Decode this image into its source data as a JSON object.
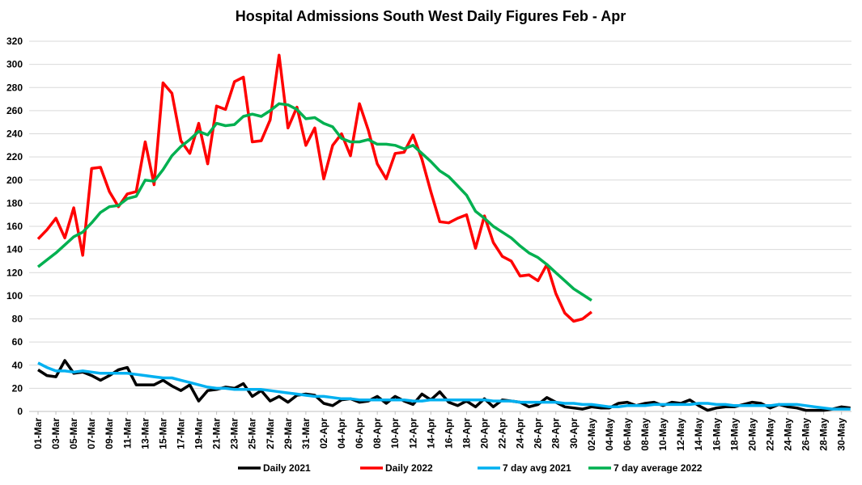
{
  "chart_data": {
    "type": "line",
    "title": "Hospital Admissions South West Daily Figures Feb - Apr",
    "xlabel": "",
    "ylabel": "",
    "ylim": [
      0,
      320
    ],
    "y_ticks": [
      0,
      20,
      40,
      60,
      80,
      100,
      120,
      140,
      160,
      180,
      200,
      220,
      240,
      260,
      280,
      300,
      320
    ],
    "grid": true,
    "legend_position": "bottom",
    "x_tick_labels": [
      "01-Mar",
      "03-Mar",
      "05-Mar",
      "07-Mar",
      "09-Mar",
      "11-Mar",
      "13-Mar",
      "15-Mar",
      "17-Mar",
      "19-Mar",
      "21-Mar",
      "23-Mar",
      "25-Mar",
      "27-Mar",
      "29-Mar",
      "31-Mar",
      "02-Apr",
      "04-Apr",
      "06-Apr",
      "08-Apr",
      "10-Apr",
      "12-Apr",
      "14-Apr",
      "16-Apr",
      "18-Apr",
      "20-Apr",
      "22-Apr",
      "24-Apr",
      "26-Apr",
      "28-Apr",
      "30-Apr",
      "02-May",
      "04-May",
      "06-May",
      "08-May",
      "10-May",
      "12-May",
      "14-May",
      "16-May",
      "18-May",
      "20-May",
      "22-May",
      "24-May",
      "26-May",
      "28-May",
      "30-May"
    ],
    "x_note_daily_from": "01-Mar",
    "series": [
      {
        "name": "Daily 2021",
        "color": "#000000",
        "values": [
          36,
          31,
          30,
          44,
          33,
          34,
          31,
          27,
          31,
          36,
          38,
          23,
          23,
          23,
          27,
          22,
          18,
          23,
          9,
          18,
          19,
          21,
          20,
          24,
          13,
          18,
          9,
          13,
          8,
          14,
          15,
          14,
          7,
          5,
          10,
          11,
          8,
          9,
          13,
          7,
          13,
          9,
          6,
          15,
          10,
          17,
          8,
          5,
          9,
          4,
          11,
          4,
          10,
          9,
          8,
          4,
          6,
          12,
          8,
          4,
          3,
          2,
          4,
          3,
          3,
          7,
          8,
          5,
          7,
          8,
          5,
          8,
          7,
          10,
          5,
          1,
          3,
          4,
          4,
          6,
          8,
          7,
          3,
          6,
          4,
          3,
          1,
          1,
          1,
          2,
          4,
          3
        ]
      },
      {
        "name": "Daily 2022",
        "color": "#ff0000",
        "values": [
          149,
          157,
          167,
          150,
          176,
          135,
          210,
          211,
          190,
          177,
          188,
          190,
          233,
          196,
          284,
          275,
          234,
          223,
          249,
          214,
          264,
          261,
          285,
          289,
          233,
          234,
          252,
          308,
          245,
          263,
          230,
          245,
          201,
          230,
          240,
          221,
          266,
          243,
          214,
          201,
          223,
          224,
          239,
          218,
          190,
          164,
          163,
          167,
          170,
          141,
          169,
          146,
          134,
          130,
          117,
          118,
          113,
          127,
          102,
          85,
          78,
          80,
          86
        ]
      },
      {
        "name": "7 day avg 2021",
        "color": "#00b0f0",
        "values": [
          42,
          38,
          35,
          35,
          34,
          35,
          34,
          33,
          33,
          33,
          33,
          32,
          31,
          30,
          29,
          29,
          27,
          25,
          23,
          21,
          20,
          20,
          19,
          19,
          19,
          19,
          18,
          17,
          16,
          15,
          14,
          13,
          13,
          12,
          11,
          11,
          10,
          10,
          10,
          10,
          10,
          10,
          9,
          9,
          10,
          10,
          10,
          10,
          10,
          10,
          10,
          9,
          9,
          9,
          8,
          8,
          8,
          8,
          8,
          7,
          7,
          6,
          6,
          5,
          4,
          4,
          5,
          5,
          5,
          6,
          6,
          6,
          6,
          6,
          7,
          7,
          6,
          6,
          5,
          5,
          5,
          5,
          5,
          6,
          6,
          6,
          5,
          4,
          3,
          2,
          2,
          2
        ]
      },
      {
        "name": "7 day average 2022",
        "color": "#00b050",
        "values": [
          125,
          131,
          137,
          144,
          151,
          155,
          163,
          172,
          177,
          178,
          184,
          186,
          200,
          199,
          209,
          221,
          229,
          235,
          242,
          239,
          249,
          247,
          248,
          255,
          257,
          255,
          260,
          266,
          265,
          261,
          253,
          254,
          249,
          246,
          236,
          233,
          233,
          235,
          231,
          231,
          230,
          227,
          230,
          223,
          216,
          208,
          203,
          195,
          187,
          173,
          167,
          160,
          155,
          150,
          143,
          137,
          133,
          127,
          120,
          113,
          106,
          101,
          96
        ]
      }
    ]
  }
}
